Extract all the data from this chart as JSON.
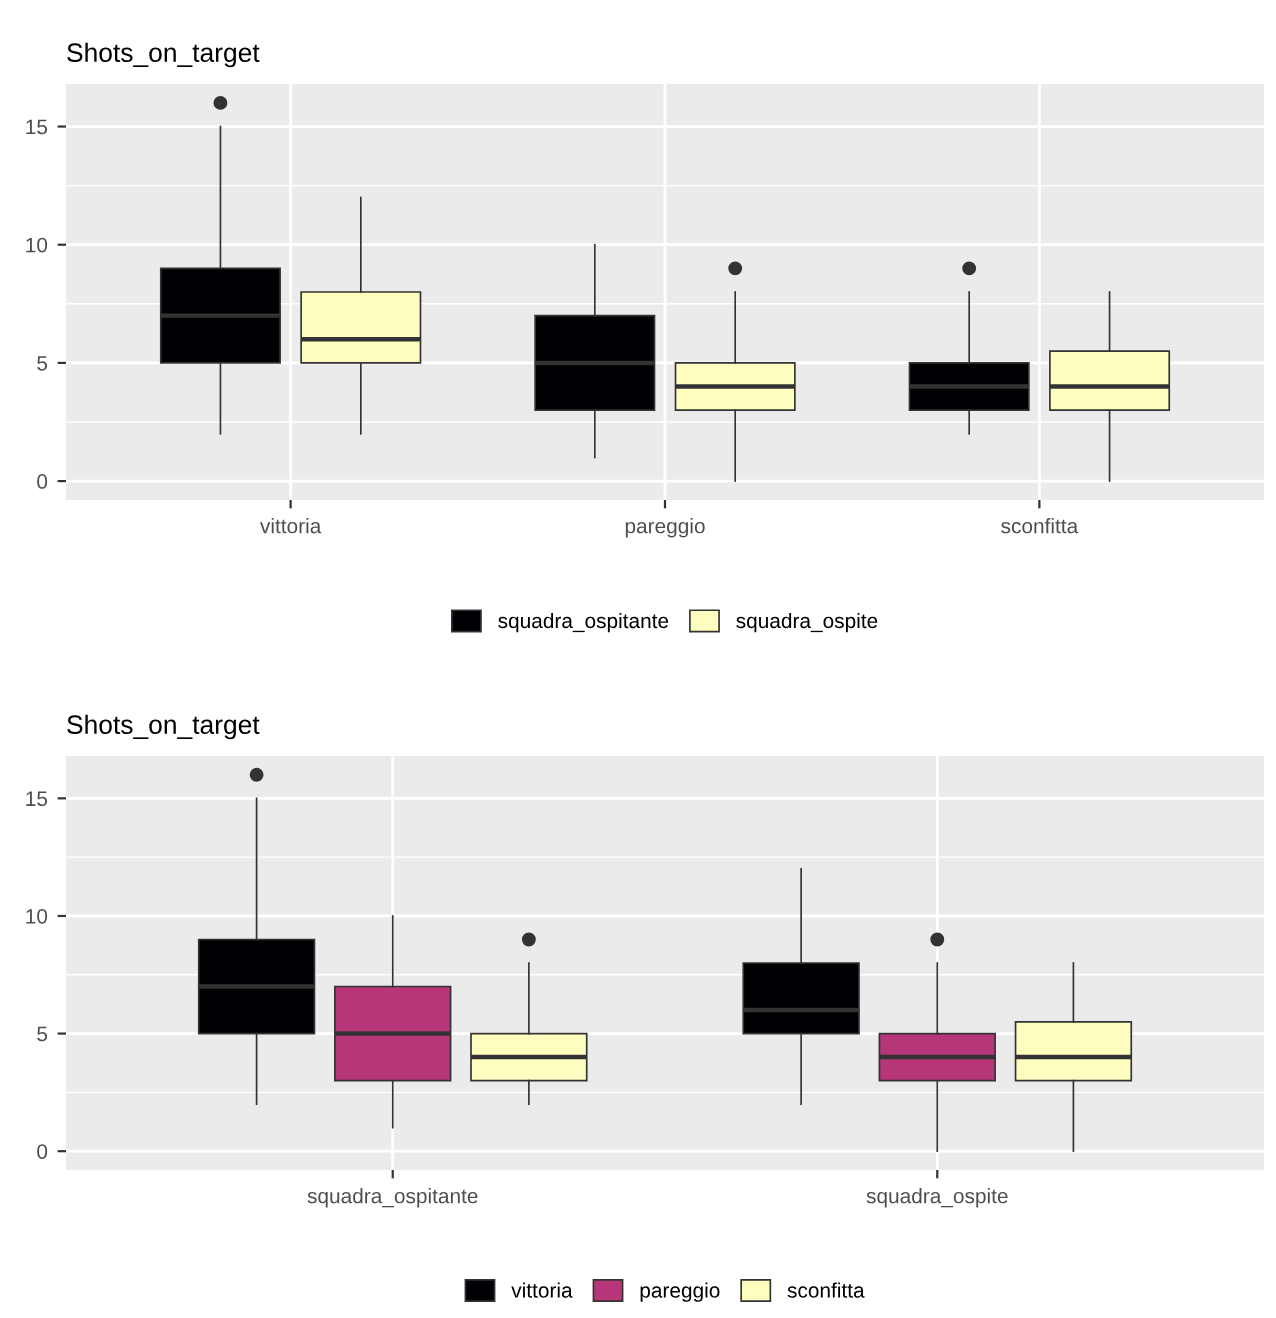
{
  "chart_data": [
    {
      "type": "box",
      "title": "Shots_on_target",
      "categories": [
        "vittoria",
        "pareggio",
        "sconfitta"
      ],
      "ylim": [
        -0.8,
        16.8
      ],
      "yticks": [
        0,
        5,
        10,
        15
      ],
      "grid": true,
      "legend": "bottom",
      "series": [
        {
          "name": "squadra_ospitante",
          "color": "#000004",
          "boxes": [
            {
              "low": 2,
              "q1": 5,
              "median": 7,
              "q3": 9,
              "high": 15,
              "outliers": [
                16
              ]
            },
            {
              "low": 1,
              "q1": 3,
              "median": 5,
              "q3": 7,
              "high": 10
            },
            {
              "low": 2,
              "q1": 3,
              "median": 4,
              "q3": 5,
              "high": 8,
              "outliers": [
                9
              ]
            }
          ]
        },
        {
          "name": "squadra_ospite",
          "color": "#fcfdbf",
          "boxes": [
            {
              "low": 2,
              "q1": 5,
              "median": 6,
              "q3": 8,
              "high": 12
            },
            {
              "low": 0,
              "q1": 3,
              "median": 4,
              "q3": 5,
              "high": 8,
              "outliers": [
                9
              ]
            },
            {
              "low": 0,
              "q1": 3,
              "median": 4,
              "q3": 5.5,
              "high": 8
            }
          ]
        }
      ]
    },
    {
      "type": "box",
      "title": "Shots_on_target",
      "categories": [
        "squadra_ospitante",
        "squadra_ospite"
      ],
      "ylim": [
        -0.8,
        16.8
      ],
      "yticks": [
        0,
        5,
        10,
        15
      ],
      "grid": true,
      "legend": "bottom",
      "series": [
        {
          "name": "vittoria",
          "color": "#000004",
          "boxes": [
            {
              "low": 2,
              "q1": 5,
              "median": 7,
              "q3": 9,
              "high": 15,
              "outliers": [
                16
              ]
            },
            {
              "low": 2,
              "q1": 5,
              "median": 6,
              "q3": 8,
              "high": 12
            }
          ]
        },
        {
          "name": "pareggio",
          "color": "#b63679",
          "boxes": [
            {
              "low": 1,
              "q1": 3,
              "median": 5,
              "q3": 7,
              "high": 10
            },
            {
              "low": 0,
              "q1": 3,
              "median": 4,
              "q3": 5,
              "high": 8,
              "outliers": [
                9
              ]
            }
          ]
        },
        {
          "name": "sconfitta",
          "color": "#fcfdbf",
          "boxes": [
            {
              "low": 2,
              "q1": 3,
              "median": 4,
              "q3": 5,
              "high": 8,
              "outliers": [
                9
              ]
            },
            {
              "low": 0,
              "q1": 3,
              "median": 4,
              "q3": 5.5,
              "high": 8
            }
          ]
        }
      ]
    }
  ]
}
